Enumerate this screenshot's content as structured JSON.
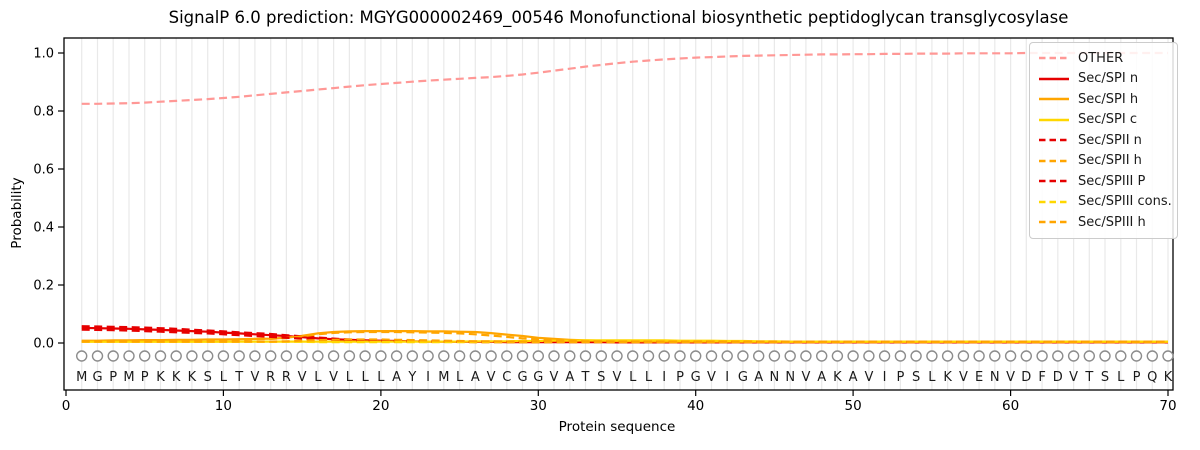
{
  "title": "SignalP 6.0 prediction: MGYG000002469_00546 Monofunctional biosynthetic peptidoglycan transglycosylase",
  "sequence": "MGPMPKKKSLTVRRVLVLLLAYIMLAVCGGVATSVLLIPGVIGANNVAKAVIPSLKVENVDFDVTSLPQK",
  "residue_marker": {
    "symbol": "open-circle",
    "color": "#8c8c8c"
  },
  "chart_data": {
    "type": "line",
    "title": "SignalP 6.0 prediction: MGYG000002469_00546 Monofunctional biosynthetic peptidoglycan transglycosylase",
    "xlabel": "Protein sequence",
    "ylabel": "Probability",
    "xlim": [
      0,
      70.3
    ],
    "ylim": [
      -0.16,
      1.05
    ],
    "yticks": [
      0.0,
      0.2,
      0.4,
      0.6,
      0.8,
      1.0
    ],
    "xticks": [
      0,
      10,
      20,
      30,
      40,
      50,
      60,
      70
    ],
    "grid": "vertical-line-per-residue",
    "legend_position": "upper-right",
    "x": [
      1,
      2,
      3,
      4,
      5,
      6,
      7,
      8,
      9,
      10,
      11,
      12,
      13,
      14,
      15,
      16,
      17,
      18,
      19,
      20,
      21,
      22,
      23,
      24,
      25,
      26,
      27,
      28,
      29,
      30,
      31,
      32,
      33,
      34,
      35,
      36,
      37,
      38,
      39,
      40,
      41,
      42,
      43,
      44,
      45,
      46,
      47,
      48,
      49,
      50,
      51,
      52,
      53,
      54,
      55,
      56,
      57,
      58,
      59,
      60,
      61,
      62,
      63,
      64,
      65,
      66,
      67,
      68,
      69,
      70
    ],
    "series": [
      {
        "label": "OTHER",
        "color": "#ff9896",
        "dash": true,
        "values": [
          0.825,
          0.825,
          0.826,
          0.827,
          0.829,
          0.832,
          0.835,
          0.838,
          0.841,
          0.845,
          0.849,
          0.854,
          0.859,
          0.864,
          0.869,
          0.874,
          0.879,
          0.884,
          0.889,
          0.893,
          0.897,
          0.901,
          0.905,
          0.908,
          0.911,
          0.914,
          0.917,
          0.921,
          0.926,
          0.932,
          0.939,
          0.946,
          0.953,
          0.959,
          0.965,
          0.97,
          0.974,
          0.978,
          0.981,
          0.984,
          0.986,
          0.988,
          0.99,
          0.991,
          0.992,
          0.993,
          0.994,
          0.995,
          0.995,
          0.996,
          0.996,
          0.997,
          0.997,
          0.998,
          0.998,
          0.998,
          0.999,
          0.999,
          0.999,
          0.999,
          1.0,
          1.0,
          1.0,
          1.0,
          1.0,
          1.0,
          1.0,
          1.0,
          1.0,
          1.0
        ]
      },
      {
        "label": "Sec/SPI n",
        "color": "#e60000",
        "dash": false,
        "values": [
          0.052,
          0.051,
          0.05,
          0.049,
          0.047,
          0.045,
          0.043,
          0.041,
          0.039,
          0.036,
          0.033,
          0.03,
          0.027,
          0.024,
          0.02,
          0.016,
          0.013,
          0.011,
          0.009,
          0.008,
          0.007,
          0.006,
          0.005,
          0.005,
          0.004,
          0.004,
          0.004,
          0.003,
          0.003,
          0.003,
          0.003,
          0.003,
          0.003,
          0.003,
          0.002,
          0.002,
          0.002,
          0.002,
          0.002,
          0.002,
          0.002,
          0.002,
          0.002,
          0.002,
          0.002,
          0.002,
          0.002,
          0.002,
          0.002,
          0.002,
          0.002,
          0.002,
          0.002,
          0.002,
          0.002,
          0.002,
          0.002,
          0.002,
          0.002,
          0.002,
          0.002,
          0.002,
          0.002,
          0.002,
          0.002,
          0.002,
          0.002,
          0.002,
          0.002,
          0.002
        ]
      },
      {
        "label": "Sec/SPI h",
        "color": "#ffa500",
        "dash": false,
        "values": [
          0.008,
          0.008,
          0.009,
          0.009,
          0.01,
          0.01,
          0.011,
          0.011,
          0.012,
          0.012,
          0.013,
          0.014,
          0.015,
          0.018,
          0.025,
          0.033,
          0.038,
          0.04,
          0.041,
          0.041,
          0.041,
          0.041,
          0.04,
          0.04,
          0.039,
          0.038,
          0.034,
          0.029,
          0.024,
          0.018,
          0.014,
          0.011,
          0.009,
          0.008,
          0.007,
          0.006,
          0.006,
          0.005,
          0.005,
          0.005,
          0.005,
          0.005,
          0.004,
          0.004,
          0.004,
          0.004,
          0.004,
          0.004,
          0.004,
          0.004,
          0.004,
          0.004,
          0.004,
          0.004,
          0.004,
          0.004,
          0.004,
          0.004,
          0.004,
          0.004,
          0.004,
          0.004,
          0.004,
          0.004,
          0.004,
          0.004,
          0.004,
          0.004,
          0.004,
          0.004
        ]
      },
      {
        "label": "Sec/SPI c",
        "color": "#ffd700",
        "dash": false,
        "values": [
          0.004,
          0.004,
          0.004,
          0.004,
          0.004,
          0.004,
          0.004,
          0.004,
          0.004,
          0.004,
          0.005,
          0.005,
          0.005,
          0.005,
          0.005,
          0.005,
          0.005,
          0.005,
          0.005,
          0.005,
          0.005,
          0.005,
          0.005,
          0.005,
          0.005,
          0.006,
          0.006,
          0.006,
          0.007,
          0.007,
          0.008,
          0.008,
          0.009,
          0.009,
          0.009,
          0.009,
          0.009,
          0.009,
          0.008,
          0.008,
          0.008,
          0.007,
          0.007,
          0.006,
          0.006,
          0.005,
          0.005,
          0.005,
          0.005,
          0.005,
          0.005,
          0.005,
          0.005,
          0.005,
          0.005,
          0.005,
          0.005,
          0.005,
          0.005,
          0.005,
          0.005,
          0.005,
          0.005,
          0.005,
          0.005,
          0.005,
          0.005,
          0.005,
          0.005,
          0.005
        ]
      },
      {
        "label": "Sec/SPII n",
        "color": "#e60000",
        "dash": true,
        "values": [
          0.058,
          0.057,
          0.056,
          0.055,
          0.053,
          0.051,
          0.049,
          0.046,
          0.043,
          0.04,
          0.037,
          0.034,
          0.031,
          0.027,
          0.023,
          0.019,
          0.015,
          0.012,
          0.01,
          0.009,
          0.008,
          0.007,
          0.006,
          0.006,
          0.005,
          0.005,
          0.005,
          0.004,
          0.004,
          0.004,
          0.004,
          0.004,
          0.004,
          0.004,
          0.004,
          0.004,
          0.004,
          0.004,
          0.004,
          0.004,
          0.004,
          0.004,
          0.004,
          0.004,
          0.004,
          0.004,
          0.004,
          0.004,
          0.004,
          0.004,
          0.004,
          0.004,
          0.004,
          0.004,
          0.004,
          0.004,
          0.004,
          0.004,
          0.004,
          0.004,
          0.004,
          0.004,
          0.004,
          0.004,
          0.004,
          0.004,
          0.004,
          0.004,
          0.004,
          0.004
        ]
      },
      {
        "label": "Sec/SPII h",
        "color": "#ffa500",
        "dash": true,
        "values": [
          0.006,
          0.006,
          0.007,
          0.007,
          0.008,
          0.008,
          0.009,
          0.009,
          0.01,
          0.011,
          0.012,
          0.013,
          0.014,
          0.017,
          0.023,
          0.03,
          0.035,
          0.037,
          0.038,
          0.038,
          0.038,
          0.037,
          0.036,
          0.035,
          0.033,
          0.03,
          0.026,
          0.021,
          0.016,
          0.012,
          0.009,
          0.007,
          0.006,
          0.006,
          0.005,
          0.005,
          0.005,
          0.005,
          0.005,
          0.005,
          0.005,
          0.005,
          0.005,
          0.005,
          0.005,
          0.005,
          0.005,
          0.005,
          0.005,
          0.005,
          0.005,
          0.005,
          0.005,
          0.005,
          0.005,
          0.005,
          0.005,
          0.005,
          0.005,
          0.005,
          0.005,
          0.005,
          0.005,
          0.005,
          0.005,
          0.005,
          0.005,
          0.005,
          0.005,
          0.005
        ]
      },
      {
        "label": "Sec/SPIII P",
        "color": "#e60000",
        "dash": true,
        "values": [
          0.046,
          0.045,
          0.044,
          0.043,
          0.041,
          0.039,
          0.037,
          0.035,
          0.033,
          0.03,
          0.027,
          0.024,
          0.021,
          0.018,
          0.015,
          0.012,
          0.01,
          0.008,
          0.007,
          0.006,
          0.005,
          0.005,
          0.004,
          0.004,
          0.004,
          0.003,
          0.003,
          0.003,
          0.003,
          0.003,
          0.003,
          0.003,
          0.003,
          0.003,
          0.003,
          0.003,
          0.003,
          0.003,
          0.003,
          0.003,
          0.003,
          0.003,
          0.003,
          0.003,
          0.003,
          0.003,
          0.003,
          0.003,
          0.003,
          0.003,
          0.003,
          0.003,
          0.003,
          0.003,
          0.003,
          0.003,
          0.003,
          0.003,
          0.003,
          0.003,
          0.003,
          0.003,
          0.003,
          0.003,
          0.003,
          0.003,
          0.003,
          0.003,
          0.003,
          0.003
        ]
      },
      {
        "label": "Sec/SPIII cons.",
        "color": "#ffd700",
        "dash": true,
        "values": [
          0.005,
          0.005,
          0.005,
          0.005,
          0.005,
          0.004,
          0.004,
          0.004,
          0.004,
          0.004,
          0.004,
          0.004,
          0.004,
          0.004,
          0.004,
          0.003,
          0.003,
          0.003,
          0.003,
          0.003,
          0.003,
          0.003,
          0.003,
          0.003,
          0.003,
          0.003,
          0.003,
          0.003,
          0.003,
          0.003,
          0.003,
          0.003,
          0.003,
          0.003,
          0.003,
          0.003,
          0.003,
          0.003,
          0.003,
          0.003,
          0.003,
          0.003,
          0.003,
          0.003,
          0.003,
          0.003,
          0.003,
          0.003,
          0.003,
          0.003,
          0.003,
          0.003,
          0.003,
          0.003,
          0.003,
          0.003,
          0.003,
          0.003,
          0.003,
          0.003,
          0.003,
          0.003,
          0.003,
          0.003,
          0.003,
          0.003,
          0.003,
          0.003,
          0.003,
          0.003
        ]
      },
      {
        "label": "Sec/SPIII h",
        "color": "#ffa500",
        "dash": true,
        "values": [
          0.005,
          0.005,
          0.005,
          0.005,
          0.005,
          0.005,
          0.005,
          0.005,
          0.005,
          0.005,
          0.005,
          0.005,
          0.005,
          0.006,
          0.008,
          0.01,
          0.011,
          0.012,
          0.012,
          0.012,
          0.011,
          0.01,
          0.009,
          0.008,
          0.007,
          0.006,
          0.006,
          0.005,
          0.005,
          0.005,
          0.004,
          0.004,
          0.004,
          0.004,
          0.004,
          0.004,
          0.004,
          0.004,
          0.004,
          0.004,
          0.004,
          0.004,
          0.004,
          0.004,
          0.004,
          0.004,
          0.004,
          0.004,
          0.004,
          0.004,
          0.004,
          0.004,
          0.004,
          0.004,
          0.004,
          0.004,
          0.004,
          0.004,
          0.004,
          0.004,
          0.004,
          0.004,
          0.004,
          0.004,
          0.004,
          0.004,
          0.004,
          0.004,
          0.004,
          0.004
        ]
      }
    ]
  }
}
